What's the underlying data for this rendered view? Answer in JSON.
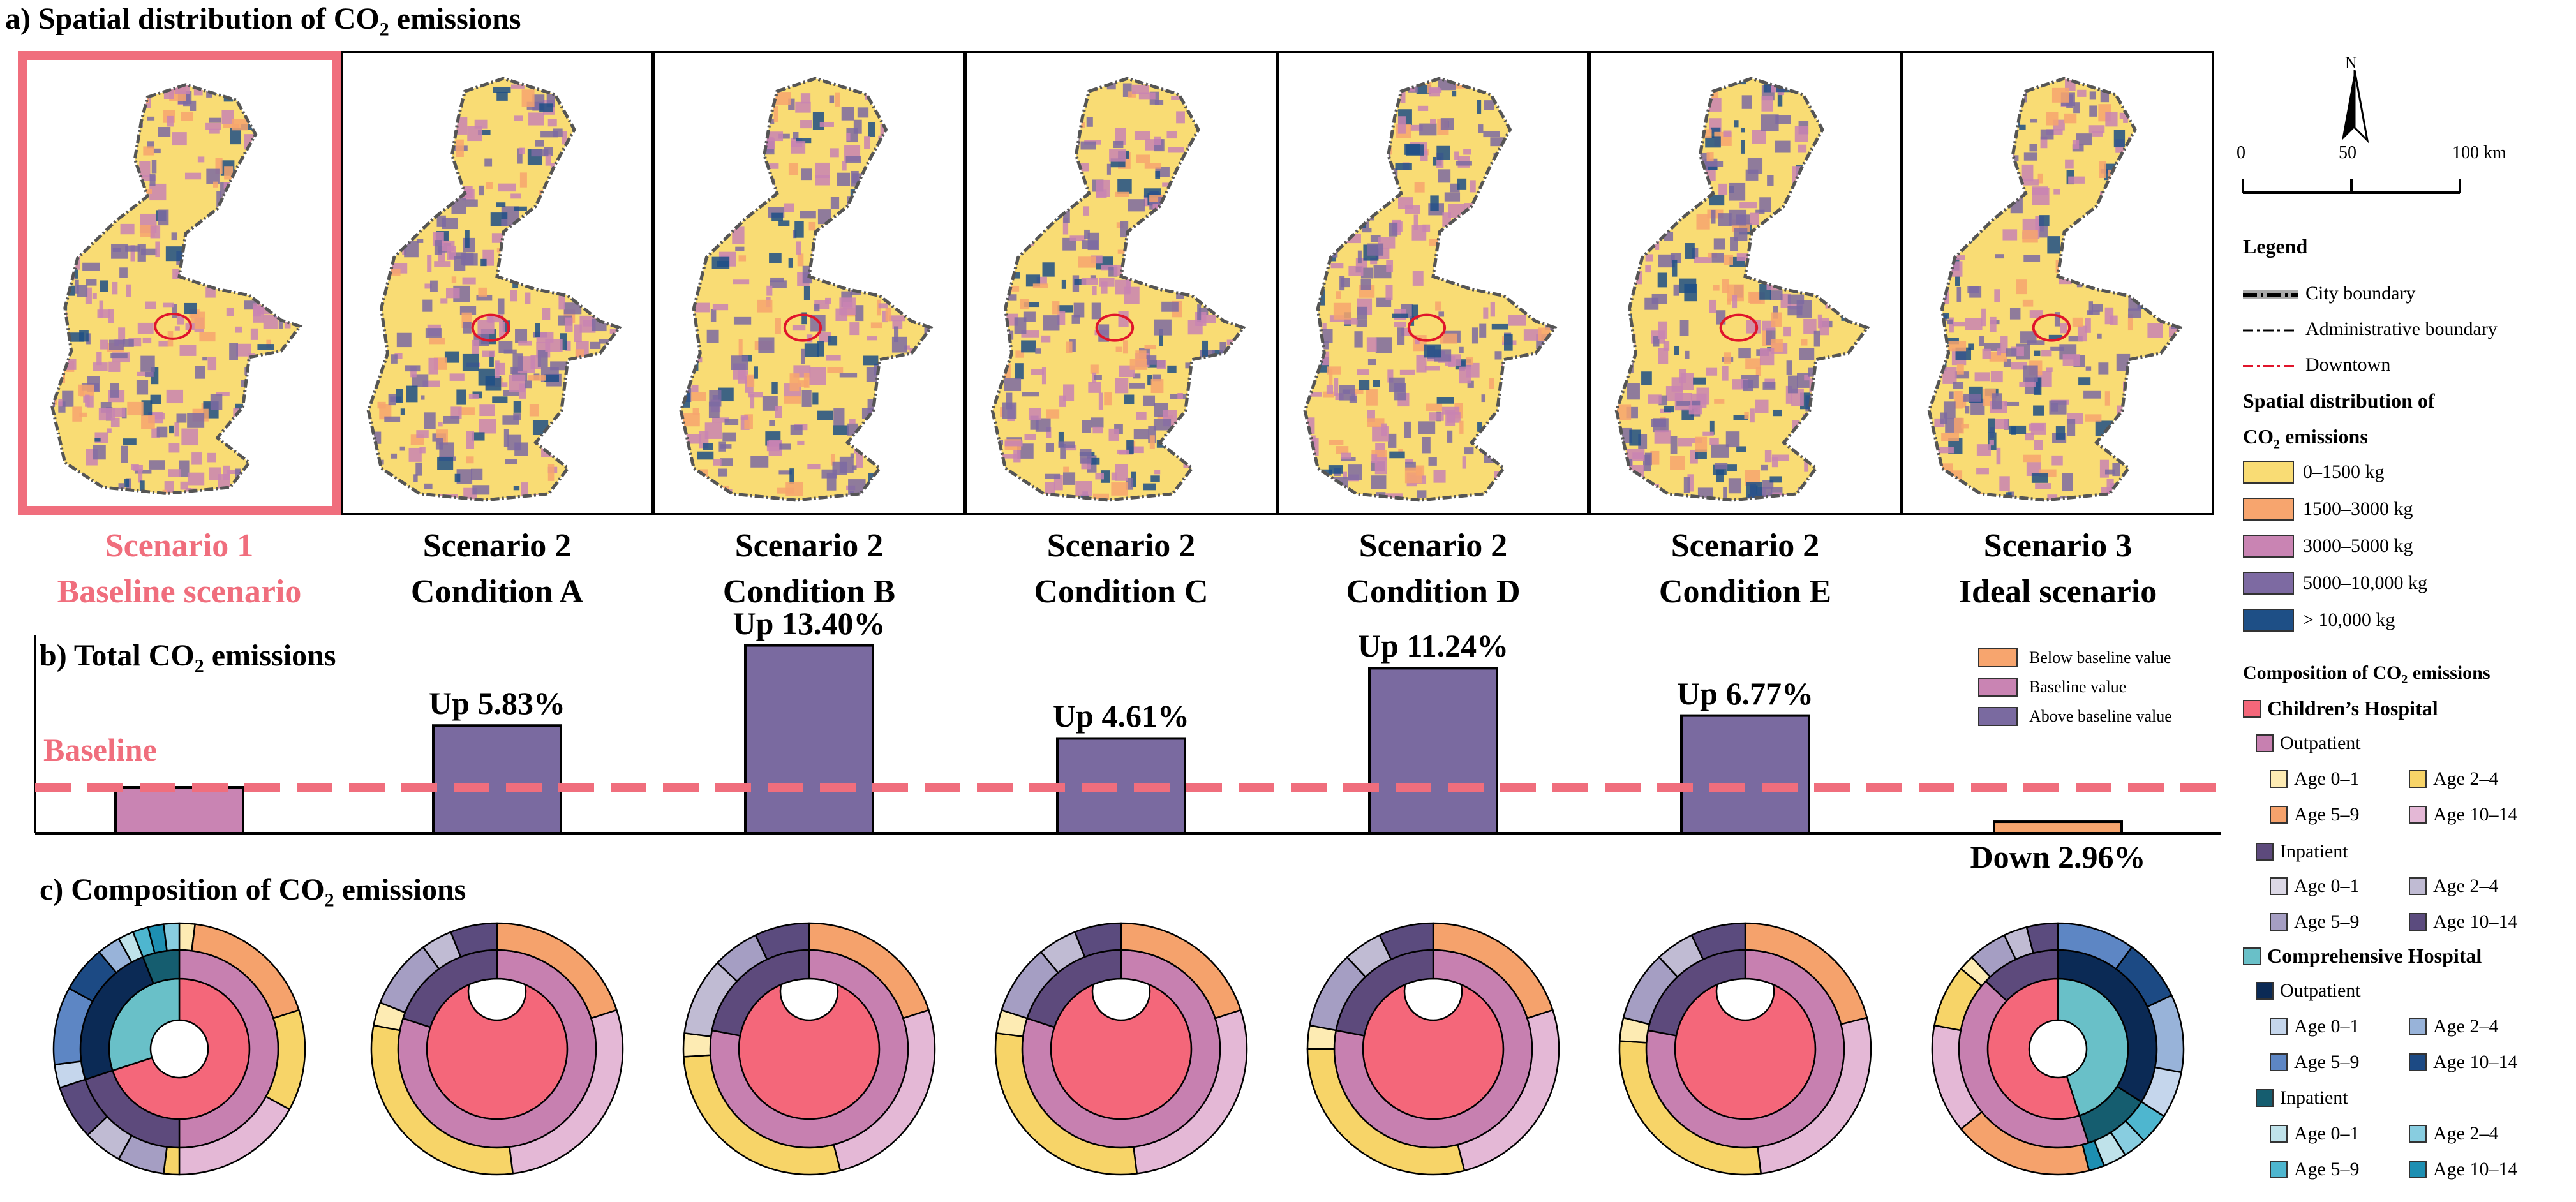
{
  "titles": {
    "a_pre": "a) Spatial distribution of CO",
    "a_sub": "2",
    "a_post": " emissions",
    "b_pre": "b) Total CO",
    "b_sub": "2",
    "b_post": " emissions",
    "c_pre": "c) Composition of CO",
    "c_sub": "2",
    "c_post": " emissions"
  },
  "scenarios": [
    {
      "line1": "Scenario 1",
      "line2": "Baseline scenario",
      "highlight": true
    },
    {
      "line1": "Scenario 2",
      "line2": "Condition A"
    },
    {
      "line1": "Scenario 2",
      "line2": "Condition B"
    },
    {
      "line1": "Scenario 2",
      "line2": "Condition C"
    },
    {
      "line1": "Scenario 2",
      "line2": "Condition D"
    },
    {
      "line1": "Scenario 2",
      "line2": "Condition E"
    },
    {
      "line1": "Scenario 3",
      "line2": "Ideal scenario"
    }
  ],
  "map_legend": {
    "north": "N",
    "scale_ticks": [
      "0",
      "50",
      "100 km"
    ],
    "legend_title": "Legend",
    "boundaries": [
      "City boundary",
      "Administrative boundary",
      "Downtown"
    ],
    "spatial_title_1": "Spatial distribution of",
    "spatial_title_2_pre": "CO",
    "spatial_title_2_sub": "2",
    "spatial_title_2_post": " emissions",
    "classes": [
      {
        "label": "0–1500 kg",
        "color": "#f9dc74"
      },
      {
        "label": "1500–3000 kg",
        "color": "#f7a56e"
      },
      {
        "label": "3000–5000 kg",
        "color": "#c984b3"
      },
      {
        "label": "5000–10,000 kg",
        "color": "#7d6aa2"
      },
      {
        "label": "> 10,000 kg",
        "color": "#1e4f86"
      }
    ]
  },
  "composition_legend": {
    "title_pre": "Composition of CO",
    "title_sub": "2",
    "title_post": " emissions",
    "childrens": "Children’s Hospital",
    "comprehensive": "Comprehensive Hospital",
    "outpatient": "Outpatient",
    "inpatient": "Inpatient",
    "ages": [
      "Age 0–1",
      "Age 2–4",
      "Age 5–9",
      "Age 10–14"
    ],
    "colors": {
      "childrens": "#f4677a",
      "ch_outpatient": "#c780b0",
      "ch_out_ages": [
        "#fdebb3",
        "#f7d468",
        "#f5a26c",
        "#e4b8d6"
      ],
      "ch_inpatient": "#5d4a7c",
      "ch_in_ages": [
        "#dcd8e6",
        "#c0bbd3",
        "#a59ec3",
        "#5b4b7e"
      ],
      "comprehensive": "#69c0c8",
      "co_outpatient": "#0b2a55",
      "co_out_ages": [
        "#c5d6ec",
        "#98b3d9",
        "#5d86c4",
        "#1c4a84"
      ],
      "co_inpatient": "#155d6f",
      "co_in_ages": [
        "#bfe2ea",
        "#88cde0",
        "#4eb6cf",
        "#1d8fb2"
      ]
    }
  },
  "bar_legend": [
    {
      "label": "Below baseline value",
      "color": "#f7a56e"
    },
    {
      "label": "Baseline value",
      "color": "#c984b3"
    },
    {
      "label": "Above baseline value",
      "color": "#7a6aa0"
    }
  ],
  "chart_data": {
    "type": "bar",
    "title": "b) Total CO2 emissions",
    "baseline_label": "Baseline",
    "unit": "% change vs baseline",
    "categories": [
      "Scenario 1 Baseline scenario",
      "Scenario 2 Condition A",
      "Scenario 2 Condition B",
      "Scenario 2 Condition C",
      "Scenario 2 Condition D",
      "Scenario 2 Condition E",
      "Scenario 3 Ideal scenario"
    ],
    "values": [
      0,
      5.83,
      13.4,
      4.61,
      11.24,
      6.77,
      -2.96
    ],
    "value_labels": [
      "",
      "Up 5.83%",
      "Up 13.40%",
      "Up 4.61%",
      "Up 11.24%",
      "Up 6.77%",
      "Down 2.96%"
    ],
    "colors": [
      "#c984b3",
      "#7a6aa0",
      "#7a6aa0",
      "#7a6aa0",
      "#7a6aa0",
      "#7a6aa0",
      "#f7a56e"
    ]
  },
  "donuts": [
    {
      "inner": [
        {
          "v": 70,
          "c": "#f4677a"
        },
        {
          "v": 30,
          "c": "#69c0c8"
        }
      ],
      "middle": [
        {
          "v": 50,
          "c": "#c780b0"
        },
        {
          "v": 20,
          "c": "#5d4a7c"
        },
        {
          "v": 24,
          "c": "#0b2a55"
        },
        {
          "v": 6,
          "c": "#155d6f"
        }
      ],
      "outer": [
        {
          "v": 2,
          "c": "#fdebb3"
        },
        {
          "v": 18,
          "c": "#f5a26c"
        },
        {
          "v": 13,
          "c": "#f7d468"
        },
        {
          "v": 17,
          "c": "#e4b8d6"
        },
        {
          "v": 2,
          "c": "#f7d468"
        },
        {
          "v": 6,
          "c": "#a59ec3"
        },
        {
          "v": 5,
          "c": "#c0bbd3"
        },
        {
          "v": 7,
          "c": "#5b4b7e"
        },
        {
          "v": 3,
          "c": "#c5d6ec"
        },
        {
          "v": 10,
          "c": "#5d86c4"
        },
        {
          "v": 6,
          "c": "#1c4a84"
        },
        {
          "v": 3,
          "c": "#98b3d9"
        },
        {
          "v": 2,
          "c": "#bfe2ea"
        },
        {
          "v": 2,
          "c": "#4eb6cf"
        },
        {
          "v": 2,
          "c": "#1d8fb2"
        },
        {
          "v": 2,
          "c": "#88cde0"
        }
      ]
    },
    {
      "inner": [
        {
          "v": 100,
          "c": "#f4677a"
        }
      ],
      "middle": [
        {
          "v": 80,
          "c": "#c780b0"
        },
        {
          "v": 20,
          "c": "#5d4a7c"
        }
      ],
      "outer": [
        {
          "v": 20,
          "c": "#f5a26c"
        },
        {
          "v": 28,
          "c": "#e4b8d6"
        },
        {
          "v": 30,
          "c": "#f7d468"
        },
        {
          "v": 3,
          "c": "#fdebb3"
        },
        {
          "v": 9,
          "c": "#a59ec3"
        },
        {
          "v": 4,
          "c": "#c0bbd3"
        },
        {
          "v": 6,
          "c": "#5b4b7e"
        }
      ]
    },
    {
      "inner": [
        {
          "v": 100,
          "c": "#f4677a"
        }
      ],
      "middle": [
        {
          "v": 78,
          "c": "#c780b0"
        },
        {
          "v": 22,
          "c": "#5d4a7c"
        }
      ],
      "outer": [
        {
          "v": 20,
          "c": "#f5a26c"
        },
        {
          "v": 26,
          "c": "#e4b8d6"
        },
        {
          "v": 28,
          "c": "#f7d468"
        },
        {
          "v": 3,
          "c": "#fdebb3"
        },
        {
          "v": 10,
          "c": "#c0bbd3"
        },
        {
          "v": 6,
          "c": "#a59ec3"
        },
        {
          "v": 7,
          "c": "#5b4b7e"
        }
      ]
    },
    {
      "inner": [
        {
          "v": 100,
          "c": "#f4677a"
        }
      ],
      "middle": [
        {
          "v": 80,
          "c": "#c780b0"
        },
        {
          "v": 20,
          "c": "#5d4a7c"
        }
      ],
      "outer": [
        {
          "v": 20,
          "c": "#f5a26c"
        },
        {
          "v": 28,
          "c": "#e4b8d6"
        },
        {
          "v": 29,
          "c": "#f7d468"
        },
        {
          "v": 3,
          "c": "#fdebb3"
        },
        {
          "v": 9,
          "c": "#a59ec3"
        },
        {
          "v": 5,
          "c": "#c0bbd3"
        },
        {
          "v": 6,
          "c": "#5b4b7e"
        }
      ]
    },
    {
      "inner": [
        {
          "v": 100,
          "c": "#f4677a"
        }
      ],
      "middle": [
        {
          "v": 78,
          "c": "#c780b0"
        },
        {
          "v": 22,
          "c": "#5d4a7c"
        }
      ],
      "outer": [
        {
          "v": 20,
          "c": "#f5a26c"
        },
        {
          "v": 26,
          "c": "#e4b8d6"
        },
        {
          "v": 29,
          "c": "#f7d468"
        },
        {
          "v": 3,
          "c": "#fdebb3"
        },
        {
          "v": 10,
          "c": "#a59ec3"
        },
        {
          "v": 5,
          "c": "#c0bbd3"
        },
        {
          "v": 7,
          "c": "#5b4b7e"
        }
      ]
    },
    {
      "inner": [
        {
          "v": 100,
          "c": "#f4677a"
        }
      ],
      "middle": [
        {
          "v": 78,
          "c": "#c780b0"
        },
        {
          "v": 22,
          "c": "#5d4a7c"
        }
      ],
      "outer": [
        {
          "v": 21,
          "c": "#f5a26c"
        },
        {
          "v": 27,
          "c": "#e4b8d6"
        },
        {
          "v": 28,
          "c": "#f7d468"
        },
        {
          "v": 3,
          "c": "#fdebb3"
        },
        {
          "v": 9,
          "c": "#a59ec3"
        },
        {
          "v": 5,
          "c": "#c0bbd3"
        },
        {
          "v": 7,
          "c": "#5b4b7e"
        }
      ]
    },
    {
      "inner": [
        {
          "v": 45,
          "c": "#69c0c8"
        },
        {
          "v": 55,
          "c": "#f4677a"
        }
      ],
      "middle": [
        {
          "v": 34,
          "c": "#0b2a55"
        },
        {
          "v": 11,
          "c": "#155d6f"
        },
        {
          "v": 42,
          "c": "#c780b0"
        },
        {
          "v": 13,
          "c": "#5d4a7c"
        }
      ],
      "outer": [
        {
          "v": 10,
          "c": "#5d86c4"
        },
        {
          "v": 8,
          "c": "#1c4a84"
        },
        {
          "v": 10,
          "c": "#98b3d9"
        },
        {
          "v": 6,
          "c": "#c5d6ec"
        },
        {
          "v": 4,
          "c": "#4eb6cf"
        },
        {
          "v": 3,
          "c": "#88cde0"
        },
        {
          "v": 3,
          "c": "#bfe2ea"
        },
        {
          "v": 2,
          "c": "#1d8fb2"
        },
        {
          "v": 18,
          "c": "#f5a26c"
        },
        {
          "v": 14,
          "c": "#e4b8d6"
        },
        {
          "v": 8,
          "c": "#f7d468"
        },
        {
          "v": 2,
          "c": "#fdebb3"
        },
        {
          "v": 5,
          "c": "#a59ec3"
        },
        {
          "v": 3,
          "c": "#c0bbd3"
        },
        {
          "v": 4,
          "c": "#5b4b7e"
        }
      ]
    }
  ]
}
